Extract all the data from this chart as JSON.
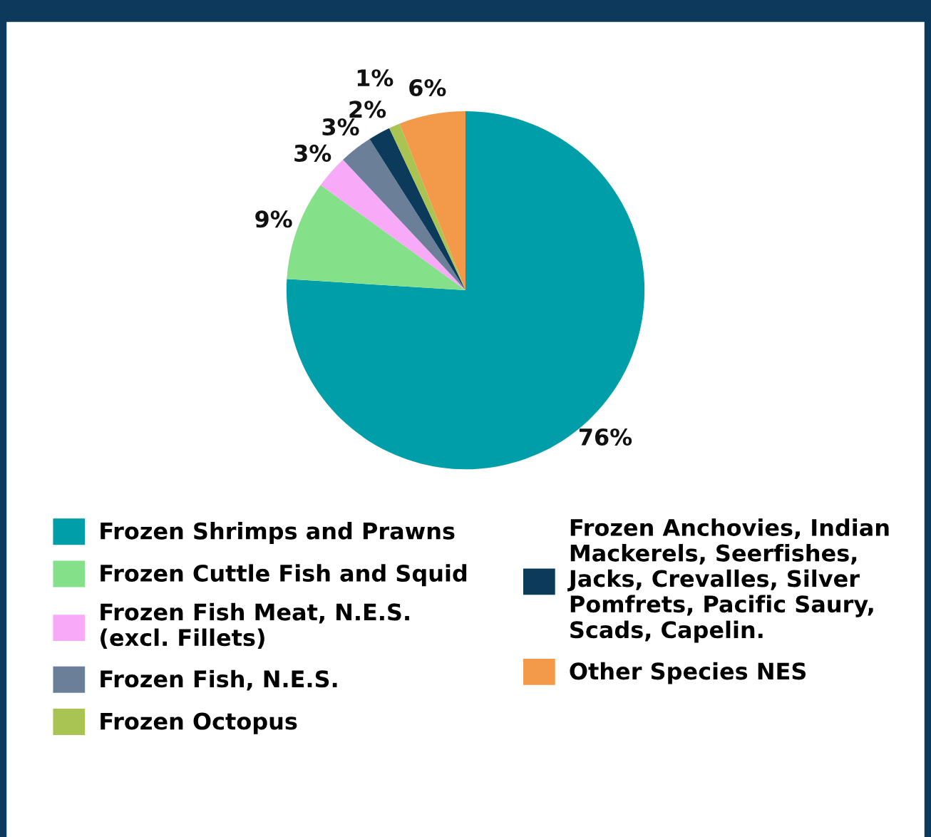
{
  "chart_data": {
    "type": "pie",
    "categories": [
      "Frozen Shrimps and Prawns",
      "Frozen Cuttle Fish and Squid",
      "Frozen Fish Meat, N.E.S.\n(excl. Fillets)",
      "Frozen Fish, N.E.S.",
      "Frozen Anchovies, Indian\nMackerels, Seerfishes,\nJacks, Crevalles, Silver\nPomfrets, Pacific Saury,\nScads, Capelin.",
      "Frozen Octopus",
      "Other Species NES"
    ],
    "values": [
      76,
      9,
      3,
      3,
      2,
      1,
      6
    ],
    "value_labels": [
      "76%",
      "9%",
      "3%",
      "3%",
      "2%",
      "1%",
      "6%"
    ],
    "colors": [
      "#009ea8",
      "#84e089",
      "#f8aaf8",
      "#6b7f99",
      "#0c3a5a",
      "#a9c452",
      "#f2994a"
    ],
    "legend": "bottom"
  }
}
